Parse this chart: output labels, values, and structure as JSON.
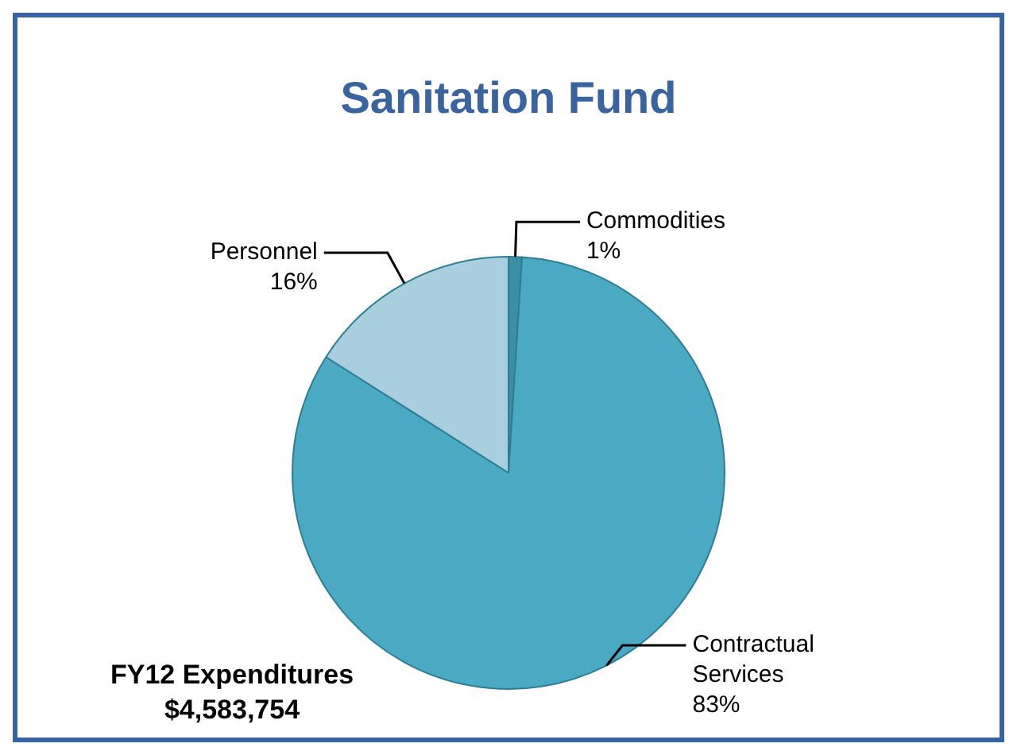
{
  "chart_data": {
    "type": "pie",
    "title": "Sanitation Fund",
    "categories": [
      "Commodities",
      "Contractual Services",
      "Personnel"
    ],
    "values": [
      1,
      83,
      16
    ],
    "colors": [
      "#3a8ea6",
      "#4aaac4",
      "#a9cedd"
    ],
    "value_labels": [
      "1%",
      "83%",
      "16%"
    ],
    "legend": false,
    "annotations": [
      "FY12 Expenditures",
      "$4,583,754"
    ]
  }
}
